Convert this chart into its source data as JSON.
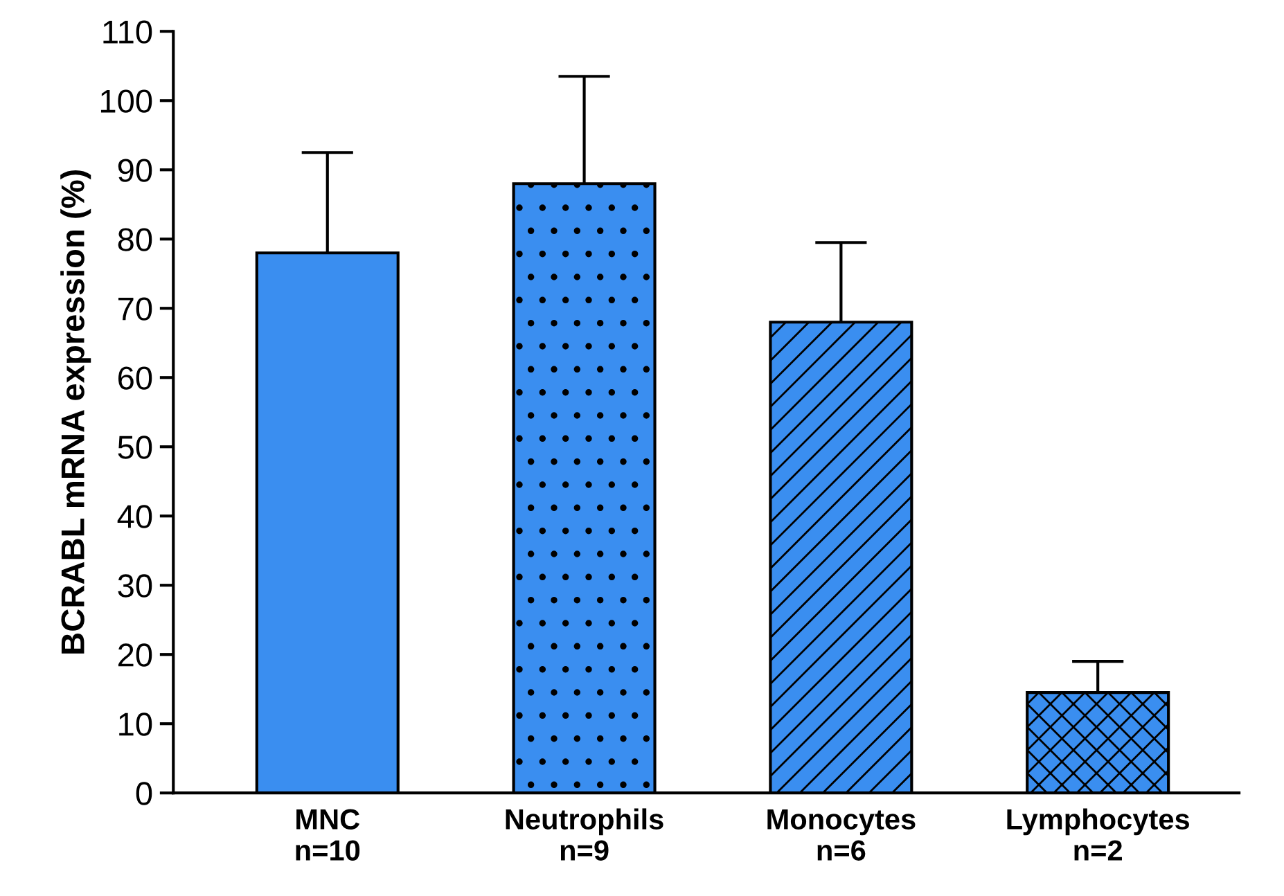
{
  "chart_data": {
    "type": "bar",
    "ylabel": "BCRABL mRNA expression (%)",
    "categories": [
      "MNC\nn=10",
      "Neutrophils\nn=9",
      "Monocytes\nn=6",
      "Lymphocytes\nn=2"
    ],
    "values": [
      78,
      88,
      68,
      14.5
    ],
    "errors": [
      [
        78,
        92.5
      ],
      [
        88,
        103.5
      ],
      [
        68,
        79.5
      ],
      [
        14.5,
        19
      ]
    ],
    "color": "#3a8ef0",
    "ylim": [
      0,
      110
    ],
    "yticks": [
      0,
      10,
      20,
      30,
      40,
      50,
      60,
      70,
      80,
      90,
      100,
      110
    ],
    "grid": false,
    "legend": false
  }
}
